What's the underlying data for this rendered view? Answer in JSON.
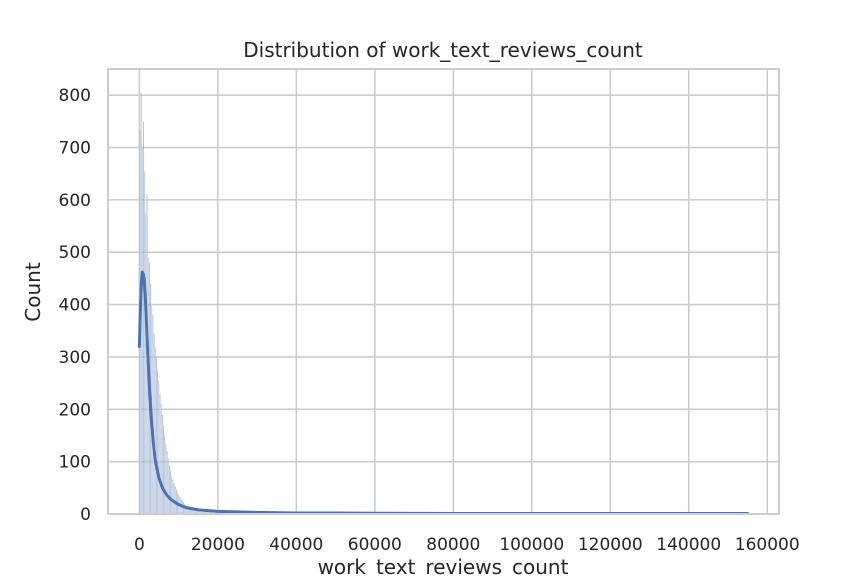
{
  "chart_data": {
    "type": "histogram",
    "title": "Distribution of work_text_reviews_count",
    "xlabel": "work_text_reviews_count",
    "ylabel": "Count",
    "xlim": [
      -8000,
      163000
    ],
    "ylim": [
      0,
      850
    ],
    "xticks": [
      0,
      20000,
      40000,
      60000,
      80000,
      100000,
      120000,
      140000,
      160000
    ],
    "yticks": [
      0,
      100,
      200,
      300,
      400,
      500,
      600,
      700,
      800
    ],
    "grid": true,
    "style": "seaborn-whitegrid",
    "bar_color": "#4c72b0",
    "kde_color": "#4c72b0",
    "bins": {
      "start": 0,
      "width": 300,
      "counts_head": [
        735,
        805,
        700,
        750,
        655,
        575,
        610,
        490,
        480,
        440,
        400,
        380,
        345,
        320,
        300,
        275,
        255,
        230,
        210,
        190,
        170,
        152,
        135,
        120,
        106,
        94,
        83,
        74,
        66,
        59,
        53,
        47,
        42,
        37,
        33,
        29,
        26,
        23,
        20,
        18
      ],
      "tail": [
        [
          12000,
          16
        ],
        [
          15000,
          10
        ],
        [
          20000,
          7
        ],
        [
          25000,
          5
        ],
        [
          30000,
          3
        ],
        [
          40000,
          2
        ],
        [
          60000,
          1
        ],
        [
          100000,
          0.5
        ],
        [
          155000,
          0.3
        ]
      ]
    },
    "kde": {
      "x": [
        0,
        250,
        500,
        750,
        1000,
        1250,
        1500,
        1750,
        2000,
        2500,
        3000,
        3500,
        4000,
        5000,
        6000,
        7000,
        8000,
        10000,
        12000,
        15000,
        20000,
        25000,
        30000,
        40000,
        50000,
        60000,
        80000,
        100000,
        120000,
        140000,
        155000
      ],
      "y": [
        320,
        390,
        440,
        462,
        458,
        445,
        415,
        375,
        330,
        250,
        185,
        140,
        105,
        68,
        48,
        36,
        28,
        18,
        12,
        8,
        5,
        4,
        3,
        2,
        2,
        1.5,
        1,
        1,
        1,
        1,
        1
      ]
    }
  }
}
